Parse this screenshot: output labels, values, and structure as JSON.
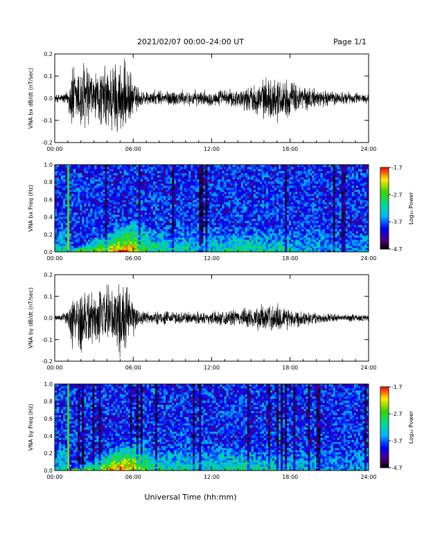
{
  "header": {
    "title": "2021/02/07  00:00–24:00 UT",
    "page": "Page 1/1"
  },
  "footer": {
    "xlabel": "Universal Time (hh:mm)"
  },
  "colors": {
    "trace": "#000000",
    "background": "#ffffff"
  },
  "chart_data": [
    {
      "type": "line",
      "ylabel": "VNA bx dB/dt (nT/sec)",
      "xlim": [
        0,
        24
      ],
      "ylim": [
        -0.2,
        0.2
      ],
      "xticks": [
        "00:00",
        "06:00",
        "12:00",
        "18:00",
        "24:00"
      ],
      "yticks": [
        "-0.2",
        "-0.1",
        "0.0",
        "0.1",
        "0.2"
      ],
      "series": [
        {
          "x": [
            0,
            0.5,
            1,
            1.3,
            1.6,
            2,
            2.5,
            3,
            3.5,
            4,
            4.5,
            5,
            5.5,
            6,
            6.5,
            7,
            8,
            9,
            10,
            11,
            12,
            13,
            14,
            15,
            16,
            17,
            18,
            19,
            20,
            21,
            22,
            23,
            24
          ],
          "amp": [
            0.02,
            0.025,
            0.04,
            0.2,
            0.15,
            0.2,
            0.2,
            0.12,
            0.15,
            0.18,
            0.2,
            0.2,
            0.18,
            0.1,
            0.05,
            0.04,
            0.04,
            0.045,
            0.04,
            0.04,
            0.04,
            0.045,
            0.05,
            0.07,
            0.1,
            0.12,
            0.09,
            0.07,
            0.05,
            0.04,
            0.035,
            0.03,
            0.025
          ]
        }
      ]
    },
    {
      "type": "heatmap",
      "ylabel": "VNA bx Freq (Hz)",
      "xlim": [
        0,
        24
      ],
      "ylim": [
        0,
        1
      ],
      "xticks": [
        "00:00",
        "06:00",
        "12:00",
        "18:00",
        "24:00"
      ],
      "yticks": [
        "0.0",
        "0.2",
        "0.4",
        "0.6",
        "0.8",
        "1.0"
      ],
      "colorbar": {
        "label": "Log₁₀ Power",
        "range": [
          -4.7,
          -1.7
        ],
        "ticks": [
          "-1.7",
          "-2.7",
          "-3.7",
          "-4.7"
        ]
      },
      "activity": {
        "x": [
          0,
          1,
          1.3,
          2,
          3,
          4,
          5,
          6,
          7,
          8,
          10,
          12,
          14,
          16,
          18,
          20,
          22,
          24
        ],
        "low_freq_power": [
          -3.3,
          -3.0,
          -2.0,
          -2.6,
          -2.5,
          -2.3,
          -1.9,
          -2.0,
          -2.8,
          -3.0,
          -3.2,
          -3.1,
          -3.0,
          -3.1,
          -3.2,
          -3.4,
          -3.5,
          -3.5
        ]
      }
    },
    {
      "type": "line",
      "ylabel": "VNA by dB/dt (nT/sec)",
      "xlim": [
        0,
        24
      ],
      "ylim": [
        -0.2,
        0.2
      ],
      "xticks": [
        "00:00",
        "06:00",
        "12:00",
        "18:00",
        "24:00"
      ],
      "yticks": [
        "-0.2",
        "-0.1",
        "0.0",
        "0.1",
        "0.2"
      ],
      "series": [
        {
          "x": [
            0,
            0.5,
            1,
            1.3,
            1.6,
            2,
            2.5,
            3,
            3.5,
            4,
            4.5,
            5,
            5.5,
            6,
            6.5,
            7,
            8,
            9,
            10,
            11,
            12,
            13,
            14,
            15,
            16,
            17,
            18,
            19,
            20,
            21,
            22,
            23,
            24
          ],
          "amp": [
            0.02,
            0.02,
            0.035,
            0.2,
            0.12,
            0.2,
            0.2,
            0.12,
            0.15,
            0.17,
            0.2,
            0.2,
            0.17,
            0.1,
            0.04,
            0.035,
            0.035,
            0.035,
            0.035,
            0.035,
            0.035,
            0.04,
            0.045,
            0.06,
            0.07,
            0.08,
            0.06,
            0.04,
            0.03,
            0.025,
            0.02,
            0.02,
            0.02
          ]
        }
      ]
    },
    {
      "type": "heatmap",
      "ylabel": "VNA by Freq (Hz)",
      "xlim": [
        0,
        24
      ],
      "ylim": [
        0,
        1
      ],
      "xticks": [
        "00:00",
        "06:00",
        "12:00",
        "18:00",
        "24:00"
      ],
      "yticks": [
        "0.0",
        "0.2",
        "0.4",
        "0.6",
        "0.8",
        "1.0"
      ],
      "colorbar": {
        "label": "Log₁₀ Power",
        "range": [
          -4.7,
          -1.7
        ],
        "ticks": [
          "-1.7",
          "-2.7",
          "-3.7",
          "-4.7"
        ]
      },
      "activity": {
        "x": [
          0,
          1,
          1.3,
          2,
          3,
          4,
          5,
          6,
          7,
          8,
          10,
          12,
          14,
          16,
          18,
          20,
          22,
          24
        ],
        "low_freq_power": [
          -3.3,
          -3.0,
          -2.0,
          -2.6,
          -2.5,
          -2.2,
          -1.8,
          -1.9,
          -2.7,
          -3.0,
          -3.1,
          -3.1,
          -3.0,
          -3.1,
          -3.3,
          -3.4,
          -3.5,
          -3.5
        ]
      }
    }
  ]
}
